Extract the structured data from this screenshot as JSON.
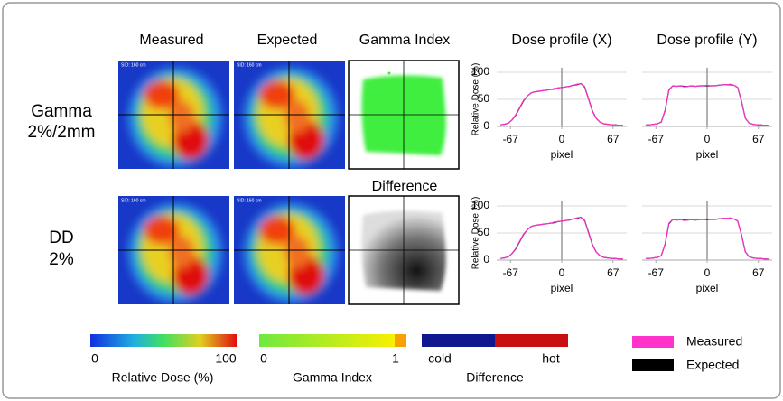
{
  "labels": {
    "columns": [
      "Measured",
      "Expected",
      "Gamma Index"
    ],
    "difference": "Difference",
    "rows": [
      [
        "Gamma",
        "2%/2mm"
      ],
      [
        "DD",
        "2%"
      ]
    ],
    "sid": "SID: 160 cm",
    "colorbars": [
      {
        "min": "0",
        "max": "100",
        "title": "Relative Dose (%)"
      },
      {
        "min": "0",
        "max": "1",
        "title": "Gamma Index"
      },
      {
        "min": "cold",
        "max": "hot",
        "title": "Difference"
      }
    ]
  },
  "chart_data": [
    {
      "type": "line",
      "title": "Dose profile (X)",
      "y_label": "Relative Dose (%)",
      "x_label": "pixel",
      "x": [
        -80,
        -75,
        -70,
        -65,
        -60,
        -55,
        -50,
        -45,
        -40,
        -35,
        -30,
        -25,
        -20,
        -15,
        -10,
        -5,
        0,
        5,
        10,
        15,
        20,
        25,
        30,
        35,
        40,
        45,
        50,
        55,
        60,
        65,
        70,
        75,
        80
      ],
      "xlim": [
        -85,
        85
      ],
      "ylim": [
        0,
        100
      ],
      "xticks": [
        -67,
        0,
        67
      ],
      "yticks": [
        0,
        50,
        100
      ],
      "ytick_labels": true,
      "grid": true,
      "series": [
        {
          "name": "Measured",
          "color": "#ff33cc",
          "values": [
            3,
            4,
            6,
            12,
            22,
            35,
            48,
            56,
            62,
            64,
            65,
            66,
            67,
            68,
            70,
            71,
            72,
            73,
            74,
            76,
            78,
            79,
            72,
            50,
            28,
            15,
            8,
            5,
            4,
            3,
            3,
            2,
            2
          ]
        },
        {
          "name": "Expected",
          "color": "#000000",
          "values": [
            3,
            4,
            6,
            12,
            21,
            34,
            47,
            56,
            62,
            64,
            65,
            66,
            67,
            68,
            69,
            71,
            72,
            73,
            74,
            76,
            77,
            79,
            73,
            51,
            29,
            15,
            8,
            5,
            4,
            3,
            3,
            2,
            2
          ]
        }
      ]
    },
    {
      "type": "line",
      "title": "Dose profile (Y)",
      "x_label": "pixel",
      "x": [
        -80,
        -75,
        -70,
        -65,
        -60,
        -55,
        -50,
        -45,
        -40,
        -35,
        -30,
        -25,
        -20,
        -15,
        -10,
        -5,
        0,
        5,
        10,
        15,
        20,
        25,
        30,
        35,
        40,
        45,
        50,
        55,
        60,
        65,
        70,
        75,
        80
      ],
      "xlim": [
        -85,
        85
      ],
      "ylim": [
        0,
        100
      ],
      "xticks": [
        -67,
        0,
        67
      ],
      "yticks": [
        0,
        50,
        100
      ],
      "ytick_labels": false,
      "grid": true,
      "series": [
        {
          "name": "Measured",
          "color": "#ff33cc",
          "values": [
            3,
            3,
            4,
            5,
            8,
            30,
            68,
            75,
            74,
            75,
            73,
            74,
            75,
            74,
            75,
            75,
            76,
            75,
            75,
            76,
            77,
            77,
            78,
            76,
            72,
            45,
            15,
            6,
            4,
            3,
            3,
            2,
            2
          ]
        },
        {
          "name": "Expected",
          "color": "#000000",
          "values": [
            3,
            3,
            4,
            5,
            8,
            29,
            67,
            75,
            74,
            75,
            74,
            74,
            75,
            74,
            75,
            75,
            75,
            75,
            75,
            76,
            77,
            77,
            77,
            76,
            72,
            46,
            15,
            6,
            4,
            3,
            3,
            2,
            2
          ]
        }
      ]
    },
    {
      "type": "line",
      "y_label": "Relative Dose (%)",
      "x_label": "pixel",
      "x": [
        -80,
        -75,
        -70,
        -65,
        -60,
        -55,
        -50,
        -45,
        -40,
        -35,
        -30,
        -25,
        -20,
        -15,
        -10,
        -5,
        0,
        5,
        10,
        15,
        20,
        25,
        30,
        35,
        40,
        45,
        50,
        55,
        60,
        65,
        70,
        75,
        80
      ],
      "xlim": [
        -85,
        85
      ],
      "ylim": [
        0,
        100
      ],
      "xticks": [
        -67,
        0,
        67
      ],
      "yticks": [
        0,
        50,
        100
      ],
      "ytick_labels": true,
      "grid": true,
      "series": [
        {
          "name": "Measured",
          "color": "#ff33cc",
          "values": [
            3,
            4,
            6,
            12,
            22,
            35,
            48,
            56,
            62,
            64,
            65,
            66,
            67,
            68,
            70,
            71,
            72,
            73,
            74,
            76,
            78,
            79,
            72,
            50,
            28,
            15,
            8,
            5,
            4,
            3,
            3,
            2,
            2
          ]
        },
        {
          "name": "Expected",
          "color": "#000000",
          "values": [
            3,
            4,
            6,
            12,
            21,
            34,
            47,
            56,
            62,
            64,
            65,
            66,
            67,
            68,
            69,
            71,
            72,
            73,
            74,
            76,
            77,
            79,
            73,
            51,
            29,
            15,
            8,
            5,
            4,
            3,
            3,
            2,
            2
          ]
        }
      ]
    },
    {
      "type": "line",
      "x_label": "pixel",
      "x": [
        -80,
        -75,
        -70,
        -65,
        -60,
        -55,
        -50,
        -45,
        -40,
        -35,
        -30,
        -25,
        -20,
        -15,
        -10,
        -5,
        0,
        5,
        10,
        15,
        20,
        25,
        30,
        35,
        40,
        45,
        50,
        55,
        60,
        65,
        70,
        75,
        80
      ],
      "xlim": [
        -85,
        85
      ],
      "ylim": [
        0,
        100
      ],
      "xticks": [
        -67,
        0,
        67
      ],
      "yticks": [
        0,
        50,
        100
      ],
      "ytick_labels": false,
      "grid": true,
      "series": [
        {
          "name": "Measured",
          "color": "#ff33cc",
          "values": [
            3,
            3,
            4,
            5,
            8,
            30,
            68,
            75,
            74,
            75,
            73,
            74,
            75,
            74,
            75,
            75,
            76,
            75,
            75,
            76,
            77,
            77,
            78,
            76,
            72,
            45,
            15,
            6,
            4,
            3,
            3,
            2,
            2
          ]
        },
        {
          "name": "Expected",
          "color": "#000000",
          "values": [
            3,
            3,
            4,
            5,
            8,
            29,
            67,
            75,
            74,
            75,
            74,
            74,
            75,
            74,
            75,
            75,
            75,
            75,
            75,
            76,
            77,
            77,
            77,
            76,
            72,
            46,
            15,
            6,
            4,
            3,
            3,
            2,
            2
          ]
        }
      ]
    }
  ]
}
